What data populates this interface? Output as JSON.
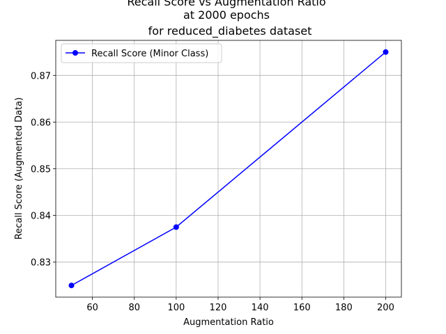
{
  "chart_data": {
    "type": "line",
    "title_lines": [
      "Recall Score vs Augmentation Ratio",
      "at 2000 epochs",
      "for reduced_diabetes dataset"
    ],
    "xlabel": "Augmentation Ratio",
    "ylabel": "Recall Score (Augmented Data)",
    "xlim": [
      42.5,
      207.5
    ],
    "ylim": [
      0.8225,
      0.8775
    ],
    "x_ticks": [
      60,
      80,
      100,
      120,
      140,
      160,
      180,
      200
    ],
    "x_tick_labels": [
      "60",
      "80",
      "100",
      "120",
      "140",
      "160",
      "180",
      "200"
    ],
    "y_ticks": [
      0.83,
      0.84,
      0.85,
      0.86,
      0.87
    ],
    "y_tick_labels": [
      "0.83",
      "0.84",
      "0.85",
      "0.86",
      "0.87"
    ],
    "grid": true,
    "legend_position": "top-left",
    "series": [
      {
        "name": "Recall Score (Minor Class)",
        "color": "#0000ff",
        "marker": "circle",
        "x": [
          50,
          100,
          200
        ],
        "y": [
          0.825,
          0.8375,
          0.875
        ]
      }
    ]
  }
}
